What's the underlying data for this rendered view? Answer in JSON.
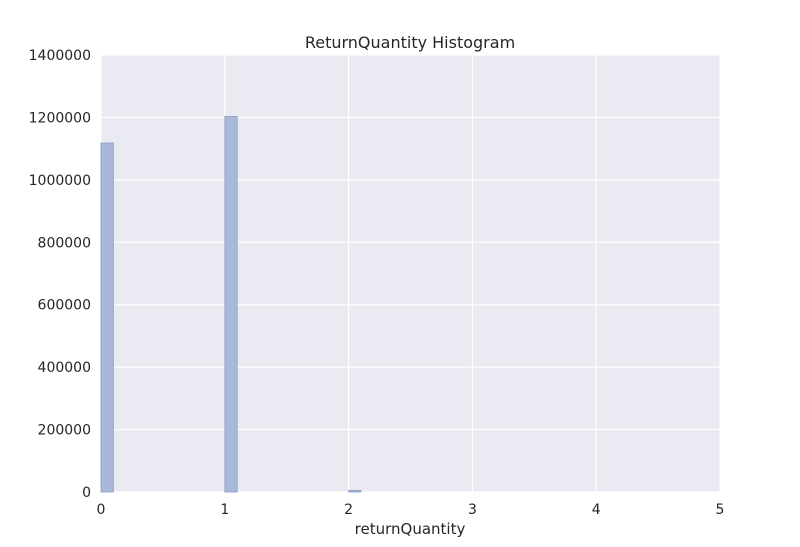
{
  "chart_data": {
    "type": "bar",
    "title": "ReturnQuantity Histogram",
    "xlabel": "returnQuantity",
    "ylabel": "",
    "xlim": [
      0,
      5
    ],
    "ylim": [
      0,
      1400000
    ],
    "x_ticks": [
      "0",
      "1",
      "2",
      "3",
      "4",
      "5"
    ],
    "y_ticks": [
      "0",
      "200000",
      "400000",
      "600000",
      "800000",
      "1000000",
      "1200000",
      "1400000"
    ],
    "grid": true,
    "bins": [
      {
        "x0": 0.0,
        "x1": 0.1,
        "value": 1118000
      },
      {
        "x0": 1.0,
        "x1": 1.1,
        "value": 1203000
      },
      {
        "x0": 2.0,
        "x1": 2.1,
        "value": 5000
      }
    ],
    "colors": {
      "bar_fill": "#a9b8d9",
      "bar_stroke": "#8a9ccb",
      "plot_bg": "#eaeaf2",
      "grid": "#ffffff"
    }
  }
}
